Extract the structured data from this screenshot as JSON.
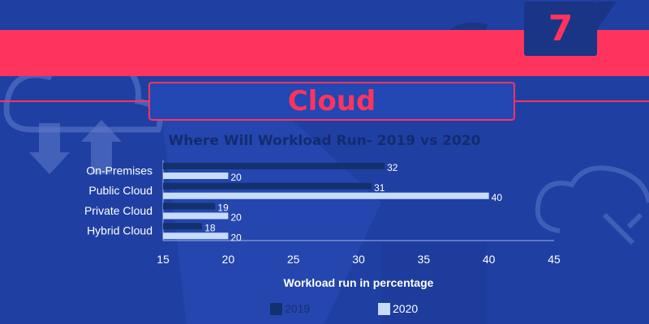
{
  "badge": {
    "number": "7"
  },
  "header": {
    "title": "Cloud"
  },
  "colors": {
    "background": "#1f3fa3",
    "accent": "#ff345e",
    "series_2019": "#13316e",
    "series_2020": "#c7dcfa"
  },
  "decorations": [
    "cloud-upload-download-icon",
    "cloud-settings-icon",
    "curved-arrow-icon"
  ],
  "chart_data": {
    "type": "bar",
    "orientation": "horizontal",
    "title": "Where Will Workload Run- 2019 vs 2020",
    "xlabel": "Workload run in percentage",
    "ylabel": "",
    "categories": [
      "On-Premises",
      "Public Cloud",
      "Private Cloud",
      "Hybrid Cloud"
    ],
    "series": [
      {
        "name": "2019",
        "values": [
          32,
          31,
          19,
          18
        ]
      },
      {
        "name": "2020",
        "values": [
          20,
          40,
          20,
          20
        ]
      }
    ],
    "xlim": [
      15,
      45
    ],
    "xticks": [
      15,
      20,
      25,
      30,
      35,
      40,
      45
    ],
    "grid": false,
    "legend": "bottom"
  }
}
